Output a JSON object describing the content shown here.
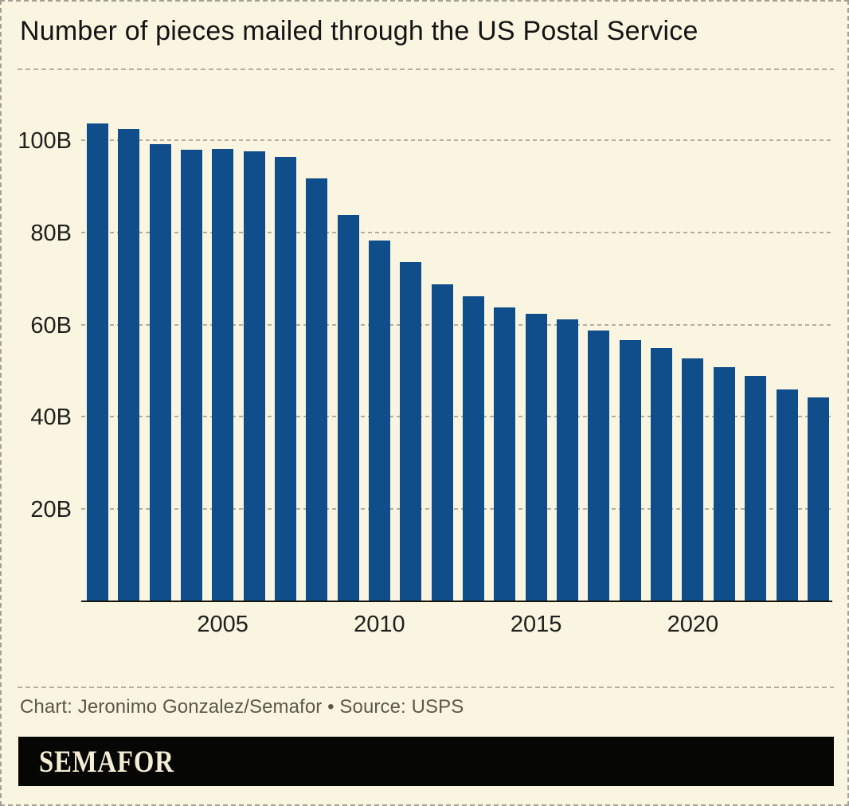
{
  "page": {
    "title": "Number of pieces mailed through the US Postal Service",
    "credit": "Chart: Jeronimo Gonzalez/Semafor • Source: USPS",
    "logo": "SEMAFOR"
  },
  "colors": {
    "background": "#FAF5E1",
    "bar": "#0F4E8A",
    "gridline": "#B3AE9F",
    "axis": "#16160F",
    "title_text": "#141414",
    "tick_text": "#20201C",
    "credit_text": "#5B584A",
    "page_border": "#A3A196",
    "logo_background": "#060605",
    "logo_text": "#F4EED6"
  },
  "chart_data": {
    "type": "bar",
    "title": "Number of pieces mailed through the US Postal Service",
    "categories": [
      2001,
      2002,
      2003,
      2004,
      2005,
      2006,
      2007,
      2008,
      2009,
      2010,
      2011,
      2012,
      2013,
      2014,
      2015,
      2016,
      2017,
      2018,
      2019,
      2020,
      2021,
      2022,
      2023,
      2024
    ],
    "values": [
      103.7,
      102.4,
      99.1,
      97.9,
      98.1,
      97.6,
      96.3,
      91.7,
      83.8,
      78.2,
      73.5,
      68.7,
      66.2,
      63.8,
      62.4,
      61.2,
      58.7,
      56.7,
      54.9,
      52.6,
      50.7,
      48.9,
      46.0,
      44.3
    ],
    "unit_suffix": "B",
    "units_meaning": "billions of pieces",
    "ylim": [
      0,
      106
    ],
    "yticks": [
      20,
      40,
      60,
      80,
      100
    ],
    "ytick_labels": [
      "20B",
      "40B",
      "60B",
      "80B",
      "100B"
    ],
    "xticks": [
      2005,
      2010,
      2015,
      2020
    ],
    "grid": "horizontal dashed",
    "legend": "none",
    "bar_color": "#0F4E8A",
    "source": "USPS"
  }
}
